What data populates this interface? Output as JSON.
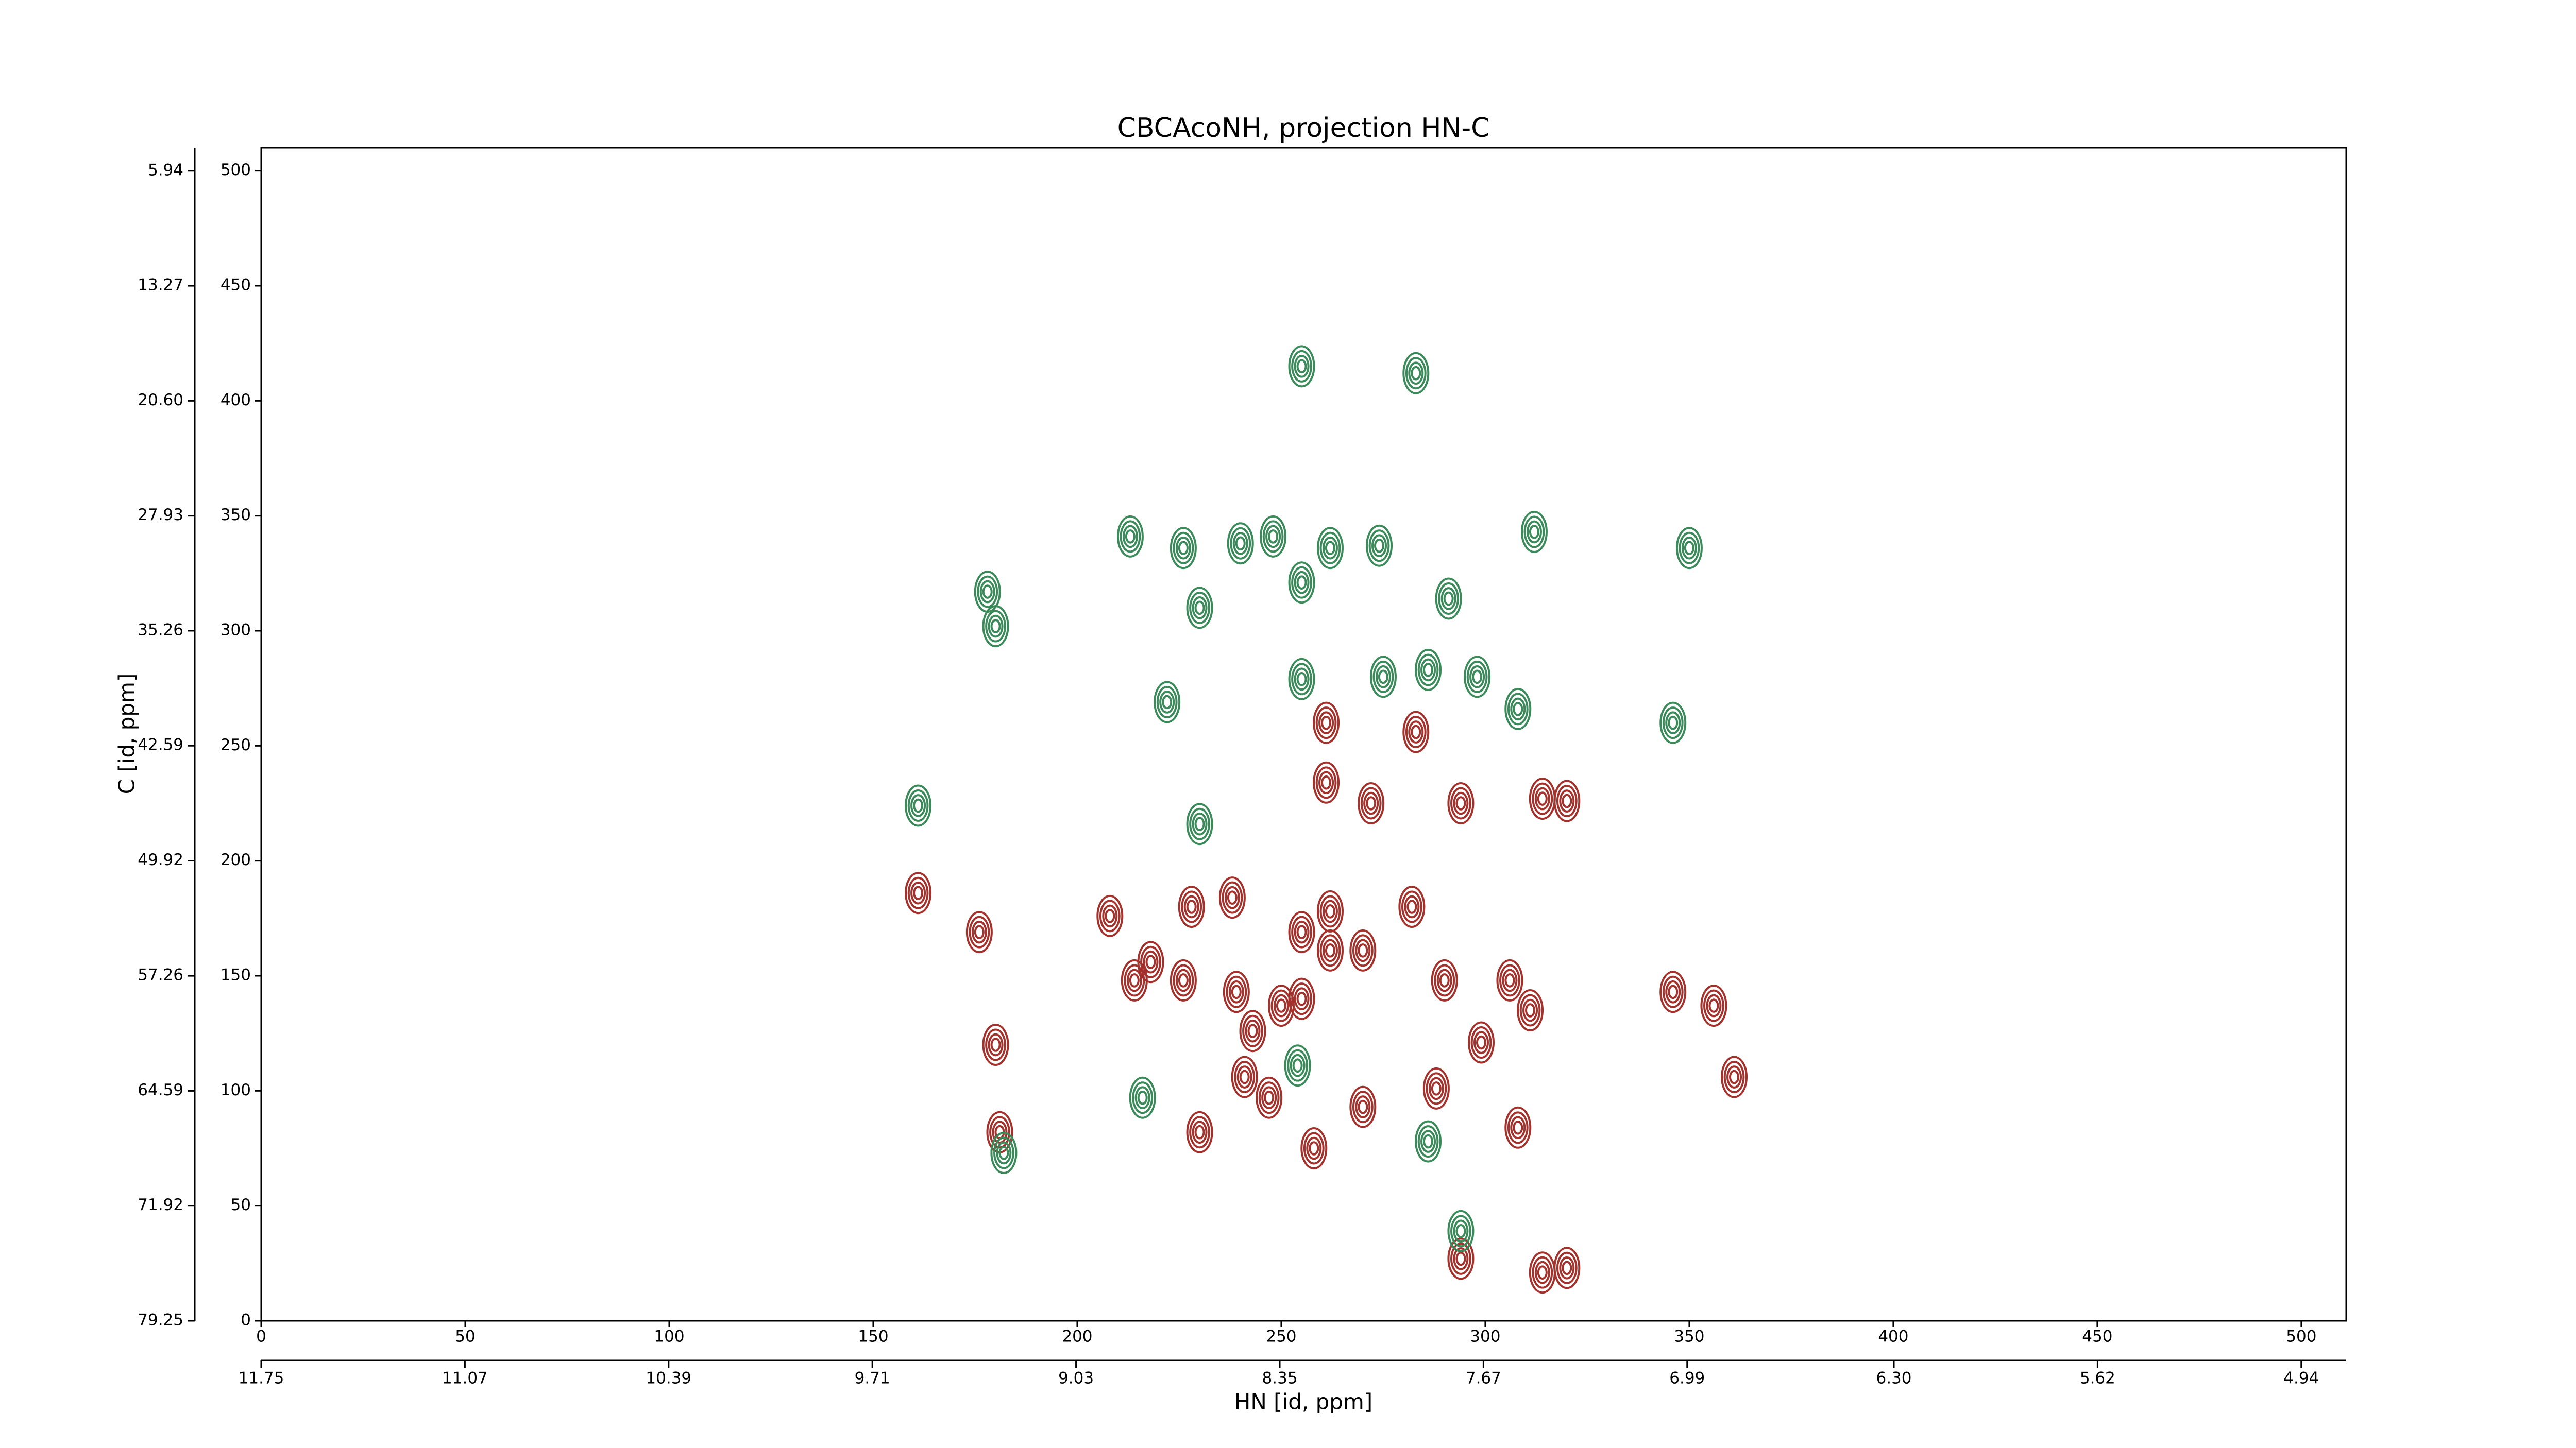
{
  "chart_data": {
    "type": "contour",
    "title": "CBCAcoNH, projection HN-C",
    "xlabel": "HN [id, ppm]",
    "ylabel": "C [id, ppm]",
    "xlim": [
      0,
      511
    ],
    "xticks": [
      0,
      50,
      100,
      150,
      200,
      250,
      300,
      350,
      400,
      450,
      500
    ],
    "ylim": [
      0,
      510
    ],
    "yticks": [
      0,
      50,
      100,
      150,
      200,
      250,
      300,
      350,
      400,
      450,
      500
    ],
    "x2lim": [
      11.75,
      4.79
    ],
    "x2ticks": [
      11.75,
      11.07,
      10.39,
      9.71,
      9.03,
      8.35,
      7.67,
      6.99,
      {
        "value": 6.3,
        "label": "6.30"
      },
      5.62,
      4.94
    ],
    "y2lim": [
      79.25,
      4.47
    ],
    "y2ticks": [
      5.94,
      13.27,
      {
        "value": 20.6,
        "label": "20.60"
      },
      27.93,
      35.26,
      42.59,
      49.92,
      57.26,
      64.59,
      71.92,
      79.25
    ],
    "series": [
      {
        "color": "#a3322c",
        "x": [
          161,
          176,
          180,
          181,
          208,
          218,
          228,
          226,
          239,
          243,
          230,
          241,
          250,
          255,
          255,
          262,
          262,
          270,
          261,
          261,
          272,
          282,
          283,
          290,
          288,
          294,
          299,
          306,
          308,
          314,
          320,
          311,
          346,
          356,
          361,
          294,
          320,
          314,
          270,
          258,
          247,
          214,
          238
        ],
        "y": [
          186,
          169,
          120,
          82,
          176,
          156,
          180,
          148,
          143,
          126,
          82,
          106,
          137,
          169,
          140,
          178,
          161,
          161,
          260,
          234,
          225,
          180,
          256,
          148,
          101,
          225,
          121,
          148,
          84,
          227,
          226,
          135,
          143,
          137,
          106,
          27,
          23,
          21,
          93,
          75,
          97,
          148,
          184
        ]
      },
      {
        "color": "#3a8a5a",
        "x": [
          255,
          283,
          213,
          226,
          240,
          248,
          262,
          274,
          312,
          350,
          178,
          180,
          230,
          255,
          291,
          222,
          255,
          275,
          286,
          298,
          308,
          346,
          161,
          230,
          182,
          216,
          286,
          294,
          254
        ],
        "y": [
          415,
          412,
          341,
          336,
          338,
          341,
          336,
          337,
          343,
          336,
          317,
          302,
          310,
          321,
          314,
          269,
          279,
          280,
          283,
          280,
          266,
          260,
          224,
          216,
          73,
          97,
          78,
          39,
          111
        ]
      }
    ]
  }
}
